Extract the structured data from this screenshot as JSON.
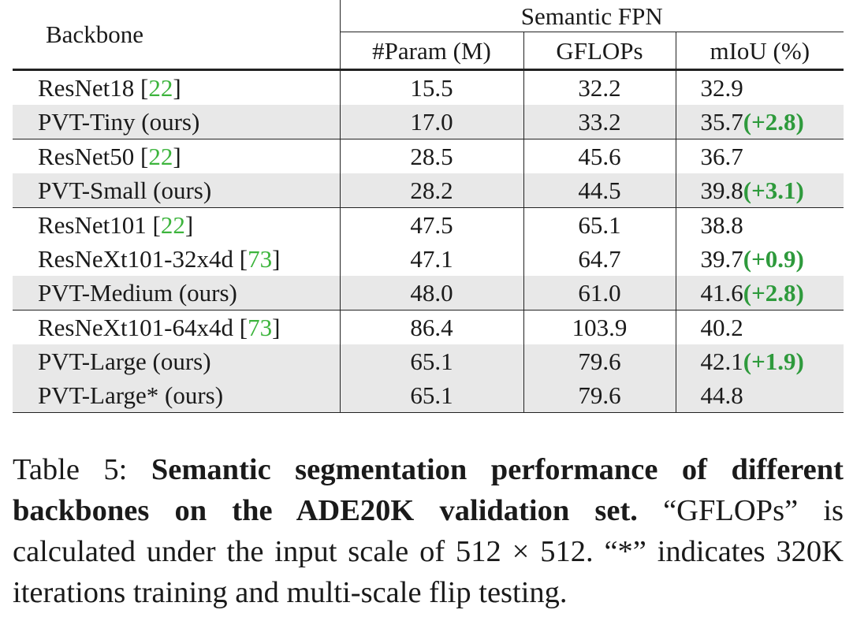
{
  "table": {
    "header": {
      "backbone": "Backbone",
      "group": "Semantic FPN",
      "param": "#Param (M)",
      "gflops": "GFLOPs",
      "miou": "mIoU (%)"
    },
    "rows": [
      {
        "name": "ResNet18",
        "cite": "22",
        "param": "15.5",
        "gflops": "32.2",
        "miou": "32.9",
        "gain": ""
      },
      {
        "name": "PVT-Tiny (ours)",
        "cite": "",
        "param": "17.0",
        "gflops": "33.2",
        "miou": "35.7",
        "gain": "(+2.8)"
      },
      {
        "name": "ResNet50",
        "cite": "22",
        "param": "28.5",
        "gflops": "45.6",
        "miou": "36.7",
        "gain": ""
      },
      {
        "name": "PVT-Small (ours)",
        "cite": "",
        "param": "28.2",
        "gflops": "44.5",
        "miou": "39.8",
        "gain": "(+3.1)"
      },
      {
        "name": "ResNet101",
        "cite": "22",
        "param": "47.5",
        "gflops": "65.1",
        "miou": "38.8",
        "gain": ""
      },
      {
        "name": "ResNeXt101-32x4d",
        "cite": "73",
        "param": "47.1",
        "gflops": "64.7",
        "miou": "39.7",
        "gain": "(+0.9)"
      },
      {
        "name": "PVT-Medium (ours)",
        "cite": "",
        "param": "48.0",
        "gflops": "61.0",
        "miou": "41.6",
        "gain": "(+2.8)"
      },
      {
        "name": "ResNeXt101-64x4d",
        "cite": "73",
        "param": "86.4",
        "gflops": "103.9",
        "miou": "40.2",
        "gain": ""
      },
      {
        "name": "PVT-Large (ours)",
        "cite": "",
        "param": "65.1",
        "gflops": "79.6",
        "miou": "42.1",
        "gain": "(+1.9)"
      },
      {
        "name": "PVT-Large* (ours)",
        "cite": "",
        "param": "65.1",
        "gflops": "79.6",
        "miou": "44.8",
        "gain": ""
      }
    ]
  },
  "caption": {
    "label": "Table 5:",
    "bold": "Semantic segmentation performance of different backbones on the ADE20K validation set.",
    "text1": "“GFLOPs” is calculated under the input scale of",
    "math": "512 × 512.",
    "text2": "“*” indicates 320K iterations training and multi-scale flip testing."
  },
  "colors": {
    "citation": "#3cb43c",
    "gain": "#2e9a3c",
    "shaded_row": "#e8e8e8"
  }
}
